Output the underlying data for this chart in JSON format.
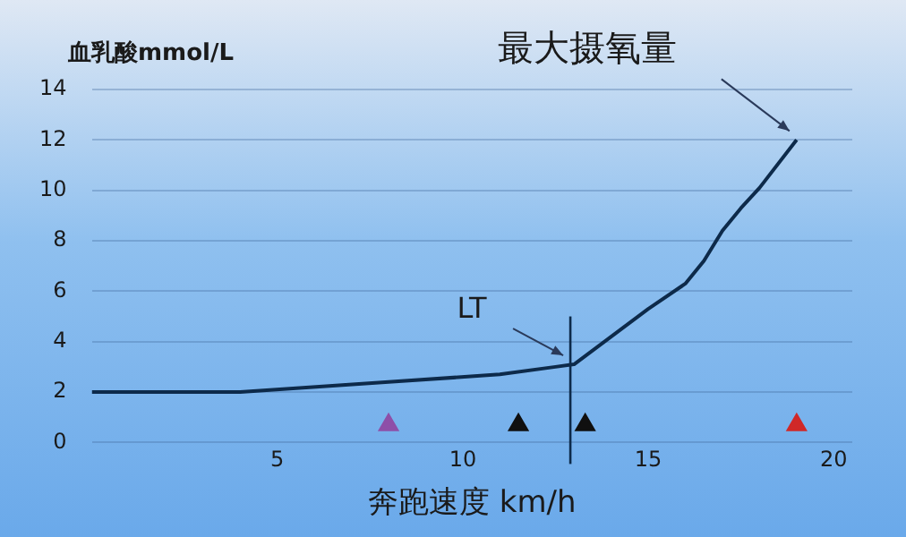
{
  "chart_data": {
    "type": "line",
    "ylabel": "血乳酸mmol/L",
    "xlabel": "奔跑速度 km/h",
    "xlim": [
      0,
      20.5
    ],
    "xticks": [
      5,
      10,
      15,
      20
    ],
    "ylim": [
      0,
      14
    ],
    "yticks": [
      0,
      2,
      4,
      6,
      8,
      10,
      12,
      14
    ],
    "grid": "y",
    "marker": "none",
    "line_style": "solid",
    "series": [
      {
        "color": "#0d2a4a",
        "x": [
          0,
          4,
          8,
          11,
          12.5,
          13,
          14,
          15,
          16,
          16.5,
          17,
          17.5,
          18,
          19
        ],
        "values": [
          2,
          2,
          2.4,
          2.7,
          3,
          3.1,
          4.2,
          5.3,
          6.3,
          7.2,
          8.4,
          9.3,
          10.1,
          12
        ]
      },
      {
        "type": "scatter",
        "marker": "triangle",
        "x": [
          8,
          11.5,
          13.3,
          19
        ],
        "values": [
          0.7,
          0.7,
          0.7,
          0.7
        ],
        "colors": [
          "#8e4fa8",
          "#101010",
          "#101010",
          "#d02828"
        ]
      }
    ],
    "ref_lines": [
      {
        "axis": "x",
        "value": 12.9,
        "color": "#0d2a4a"
      }
    ],
    "annotations": [
      {
        "text": "LT",
        "x": 12.9,
        "y": 3.1
      },
      {
        "text": "最大摄氧量",
        "x": 19,
        "y": 12
      }
    ]
  }
}
